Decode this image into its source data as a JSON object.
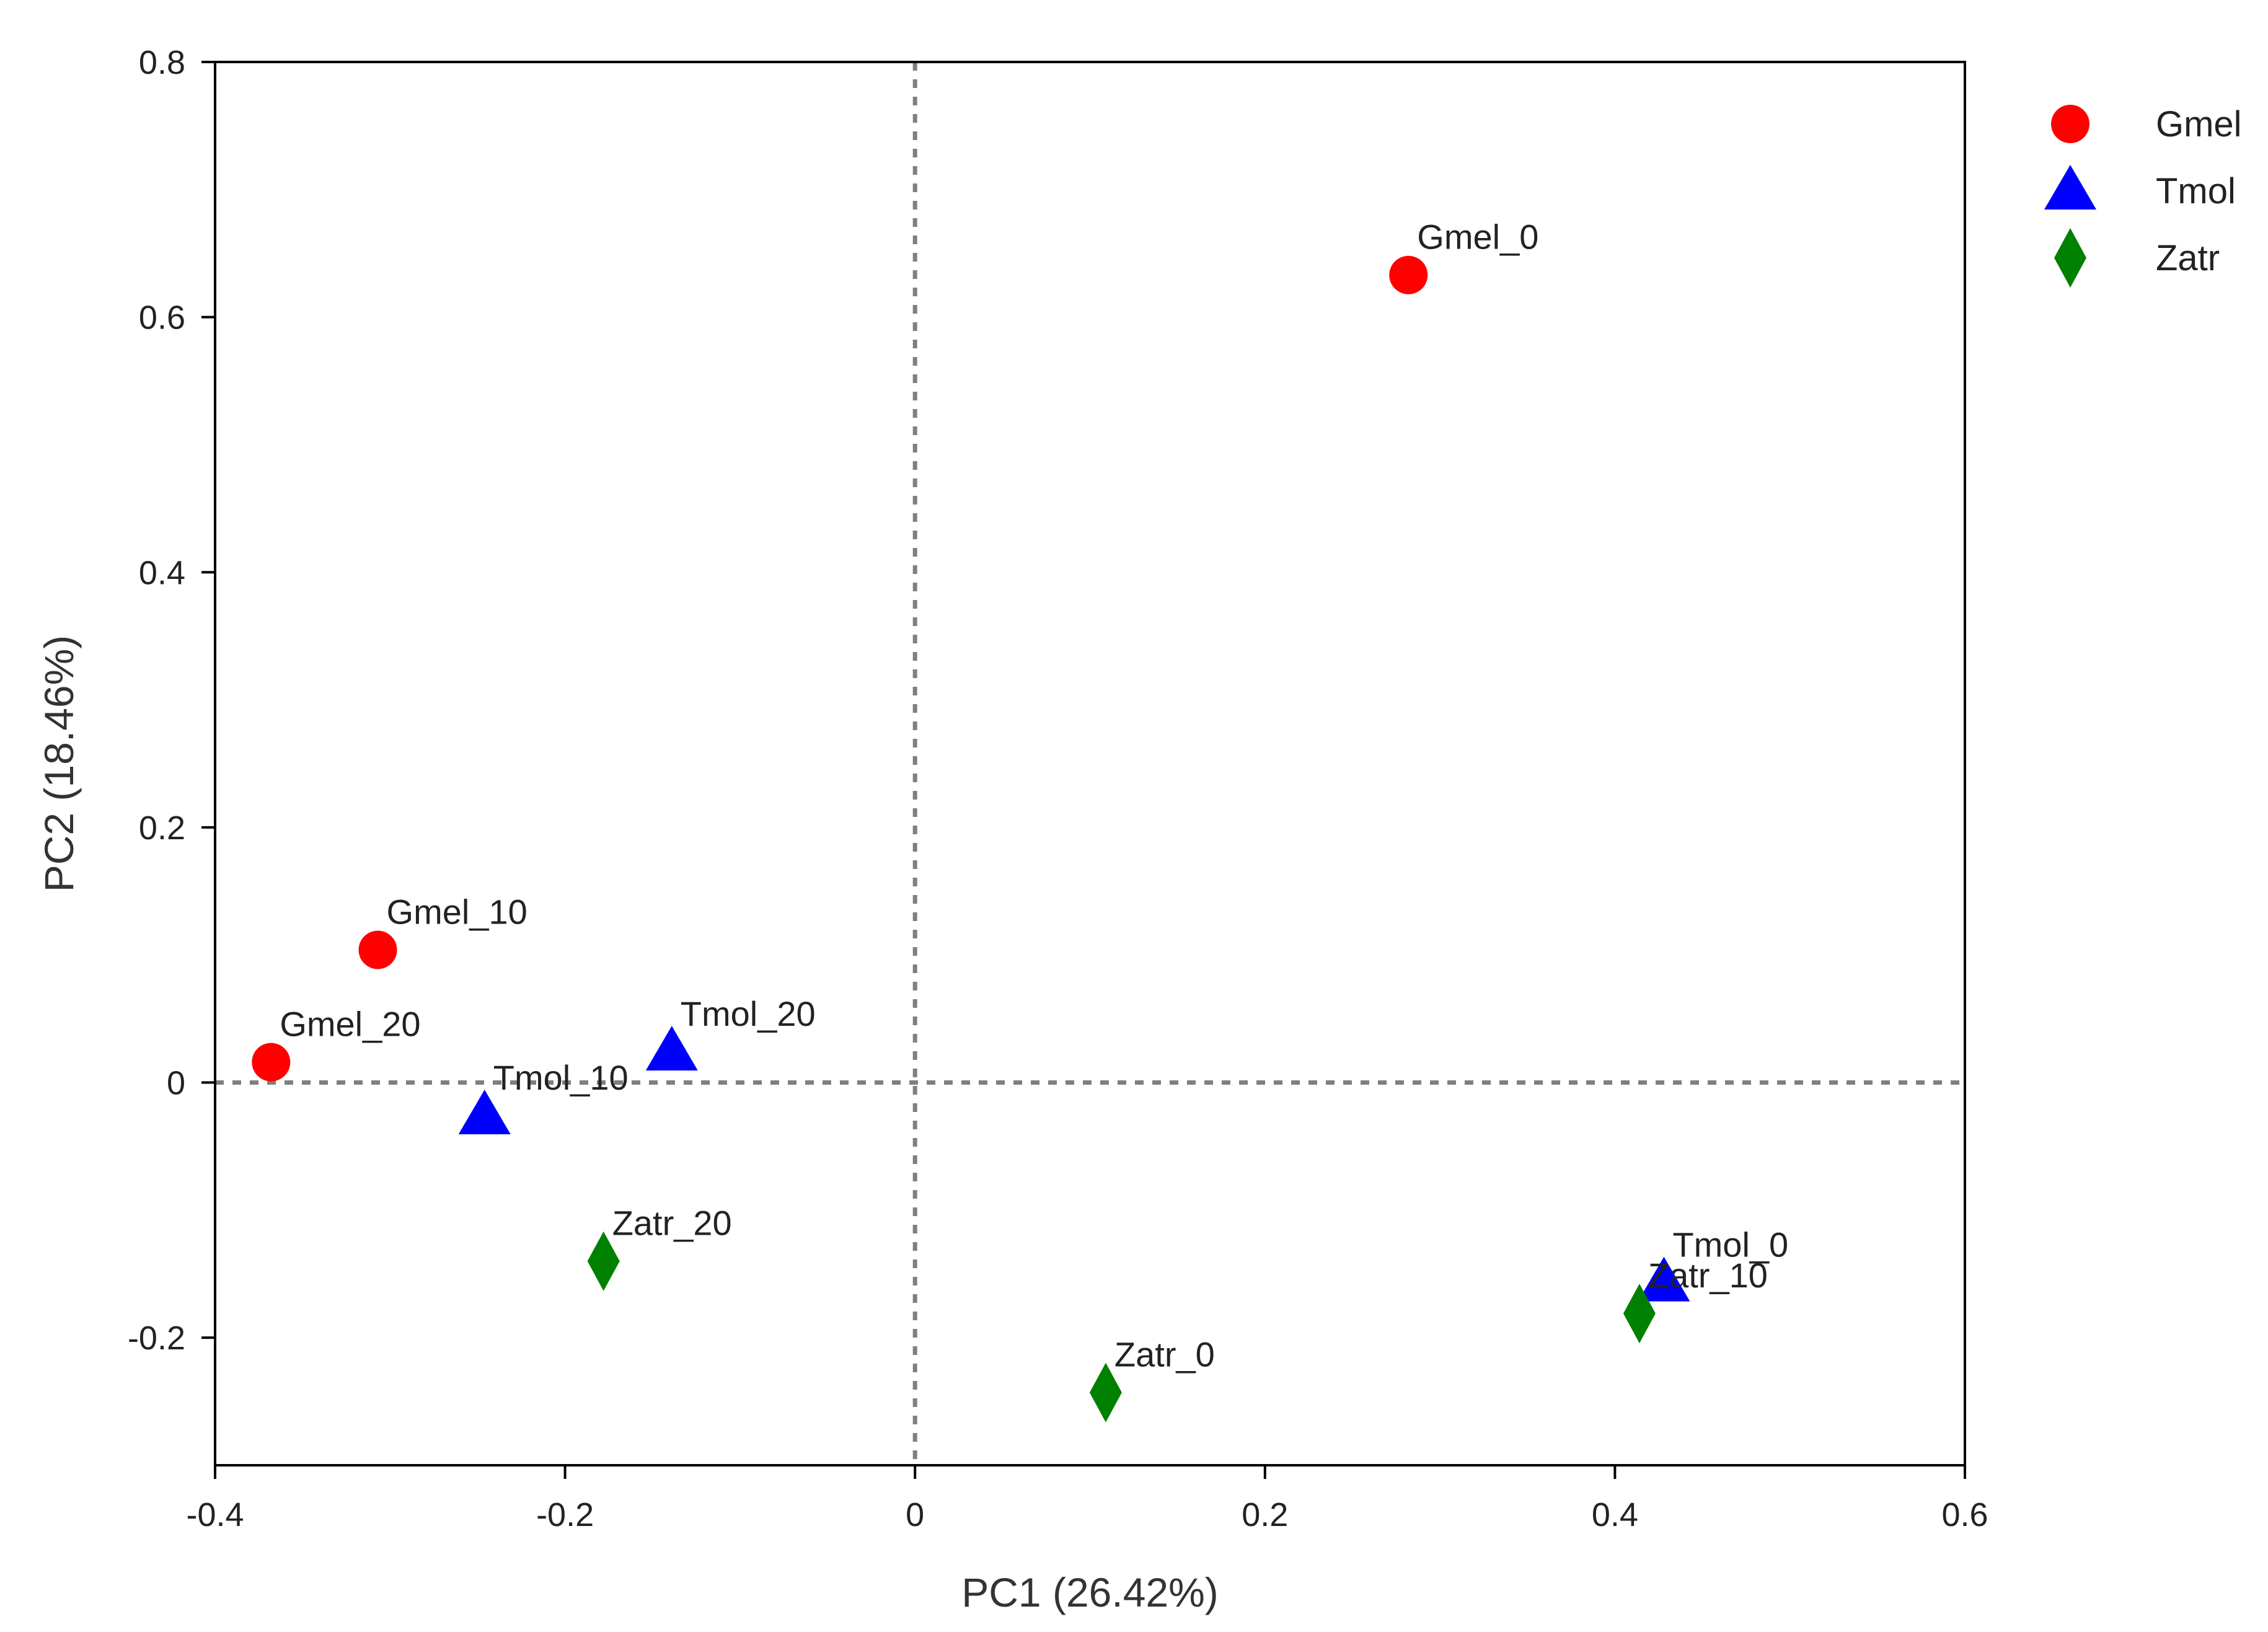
{
  "chart_data": {
    "type": "scatter",
    "title": "",
    "xlabel": "PC1 (26.42%)",
    "ylabel": "PC2 (18.46%)",
    "xlim": [
      -0.4,
      0.6
    ],
    "ylim": [
      -0.3,
      0.8
    ],
    "xticks": [
      -0.4,
      -0.2,
      0,
      0.2,
      0.4,
      0.6
    ],
    "xtick_labels": [
      "-0.4",
      "-0.2",
      "0",
      "0.2",
      "0.4",
      "0.6"
    ],
    "yticks": [
      -0.2,
      0,
      0.2,
      0.4,
      0.6,
      0.8
    ],
    "ytick_labels": [
      "-0.2",
      "0",
      "0.2",
      "0.4",
      "0.6",
      "0.8"
    ],
    "grid": false,
    "reference_lines": {
      "x": 0,
      "y": 0,
      "style": "dotted",
      "color": "#808080"
    },
    "legend_position": "top-right, outside plot",
    "series": [
      {
        "name": "Gmel",
        "marker": "circle",
        "color": "#ff0000",
        "points": [
          {
            "label": "Gmel_0",
            "x": 0.282,
            "y": 0.633
          },
          {
            "label": "Gmel_10",
            "x": -0.307,
            "y": 0.104
          },
          {
            "label": "Gmel_20",
            "x": -0.368,
            "y": 0.016
          }
        ]
      },
      {
        "name": "Tmol",
        "marker": "triangle",
        "color": "#0000ff",
        "points": [
          {
            "label": "Tmol_0",
            "x": 0.428,
            "y": -0.157
          },
          {
            "label": "Tmol_10",
            "x": -0.246,
            "y": -0.026
          },
          {
            "label": "Tmol_20",
            "x": -0.139,
            "y": 0.024
          }
        ]
      },
      {
        "name": "Zatr",
        "marker": "diamond",
        "color": "#008000",
        "points": [
          {
            "label": "Zatr_0",
            "x": 0.109,
            "y": -0.243
          },
          {
            "label": "Zatr_10",
            "x": 0.414,
            "y": -0.181
          },
          {
            "label": "Zatr_20",
            "x": -0.178,
            "y": -0.14
          }
        ]
      }
    ]
  }
}
